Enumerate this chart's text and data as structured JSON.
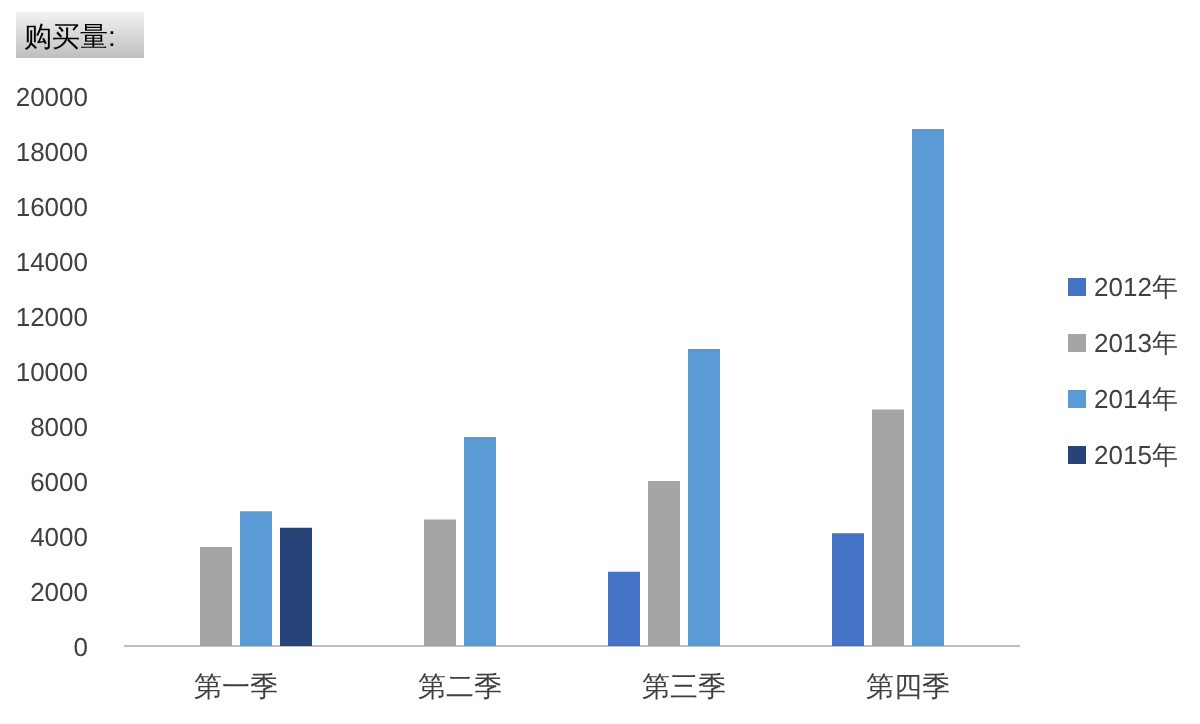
{
  "chart_data": {
    "type": "bar",
    "title": "购买量:",
    "categories": [
      "第一季",
      "第二季",
      "第三季",
      "第四季"
    ],
    "series": [
      {
        "name": "2012年",
        "color": "#4472c4",
        "values": [
          null,
          null,
          2700,
          4100
        ]
      },
      {
        "name": "2013年",
        "color": "#a5a5a5",
        "values": [
          3600,
          4600,
          6000,
          8600
        ]
      },
      {
        "name": "2014年",
        "color": "#5b9bd5",
        "values": [
          4900,
          7600,
          10800,
          18800
        ]
      },
      {
        "name": "2015年",
        "color": "#264478",
        "values": [
          4300,
          null,
          null,
          null
        ]
      }
    ],
    "ylim": [
      0,
      20000
    ],
    "yticks": [
      0,
      2000,
      4000,
      6000,
      8000,
      10000,
      12000,
      14000,
      16000,
      18000,
      20000
    ],
    "legend": "right"
  }
}
